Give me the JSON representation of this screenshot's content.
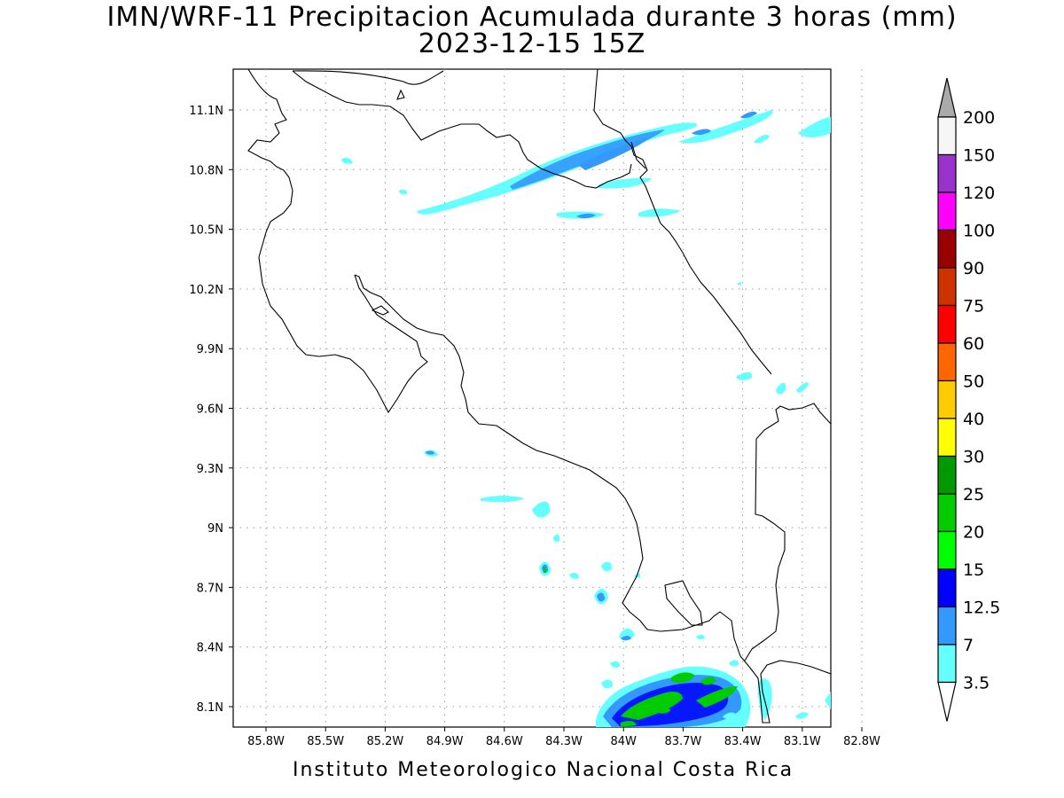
{
  "title_line1": "IMN/WRF-11 Precipitacion Acumulada durante 3 horas (mm)",
  "title_line2": "2023-12-15 15Z",
  "footer": "Instituto Meteorologico Nacional Costa Rica",
  "longitude_labels": [
    "85.8W",
    "85.5W",
    "85.2W",
    "84.9W",
    "84.6W",
    "84.3W",
    "84W",
    "83.7W",
    "83.4W",
    "83.1W",
    "82.8W"
  ],
  "latitude_labels": [
    "11.1N",
    "10.8N",
    "10.5N",
    "10.2N",
    "9.9N",
    "9.6N",
    "9.3N",
    "9N",
    "8.7N",
    "8.4N",
    "8.1N"
  ],
  "colorbar": {
    "labels": [
      "200",
      "150",
      "120",
      "100",
      "90",
      "75",
      "60",
      "50",
      "40",
      "30",
      "25",
      "20",
      "15",
      "12.5",
      "7",
      "3.5"
    ],
    "colors": [
      "#f6f6f6",
      "#9933cc",
      "#ff00ff",
      "#990000",
      "#cc3300",
      "#ff0000",
      "#ff6600",
      "#ffcc00",
      "#ffff00",
      "#009900",
      "#00cc00",
      "#00ff00",
      "#0000ff",
      "#3399ff",
      "#66ffff"
    ],
    "top_arrow_color": "#aaaaaa",
    "bottom_arrow_color": "#ffffff"
  }
}
